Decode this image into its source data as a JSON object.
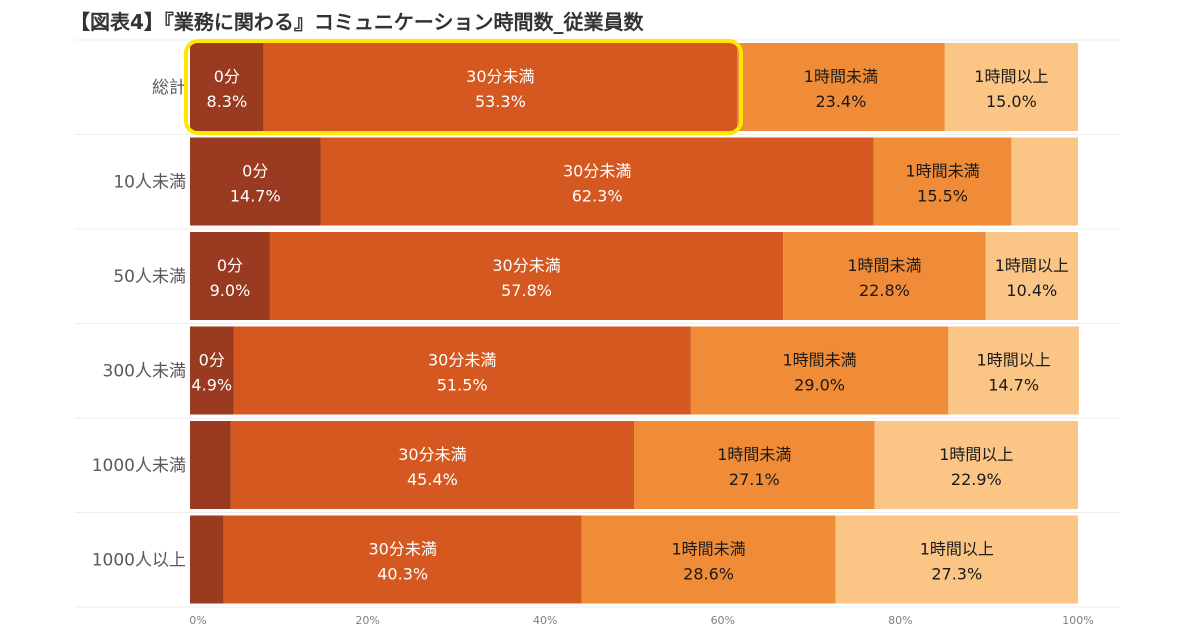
{
  "title": "【図表4】『業務に関わる』コミュニケーション時間数_従業員数",
  "chart_data": {
    "type": "bar",
    "orientation": "horizontal",
    "stacked": "100%",
    "categories": [
      "総計",
      "10人未満",
      "50人未満",
      "300人未満",
      "1000人未満",
      "1000人以上"
    ],
    "series": [
      {
        "name": "0分",
        "color": "#9A3A20",
        "values": [
          8.3,
          14.7,
          9.0,
          4.9,
          4.6,
          3.8
        ]
      },
      {
        "name": "30分未満",
        "color": "#D4581F",
        "values": [
          53.3,
          62.3,
          57.8,
          51.5,
          45.4,
          40.3
        ]
      },
      {
        "name": "1時間未満",
        "color": "#F08C38",
        "values": [
          23.4,
          15.5,
          22.8,
          29.0,
          27.1,
          28.6
        ]
      },
      {
        "name": "1時間以上",
        "color": "#FBC586",
        "values": [
          15.0,
          7.5,
          10.4,
          14.7,
          22.9,
          27.3
        ]
      }
    ],
    "value_labels": [
      [
        {
          "name": "0分",
          "value": "8.3%"
        },
        {
          "name": "30分未満",
          "value": "53.3%"
        },
        {
          "name": "1時間未満",
          "value": "23.4%"
        },
        {
          "name": "1時間以上",
          "value": "15.0%"
        }
      ],
      [
        {
          "name": "0分",
          "value": "14.7%"
        },
        {
          "name": "30分未満",
          "value": "62.3%"
        },
        {
          "name": "1時間未満",
          "value": "15.5%"
        },
        null
      ],
      [
        {
          "name": "0分",
          "value": "9.0%"
        },
        {
          "name": "30分未満",
          "value": "57.8%"
        },
        {
          "name": "1時間未満",
          "value": "22.8%"
        },
        {
          "name": "1時間以上",
          "value": "10.4%"
        }
      ],
      [
        {
          "name": "0分",
          "value": "4.9%"
        },
        {
          "name": "30分未満",
          "value": "51.5%"
        },
        {
          "name": "1時間未満",
          "value": "29.0%"
        },
        {
          "name": "1時間以上",
          "value": "14.7%"
        }
      ],
      [
        null,
        {
          "name": "30分未満",
          "value": "45.4%"
        },
        {
          "name": "1時間未満",
          "value": "27.1%"
        },
        {
          "name": "1時間以上",
          "value": "22.9%"
        }
      ],
      [
        null,
        {
          "name": "30分未満",
          "value": "40.3%"
        },
        {
          "name": "1時間未満",
          "value": "28.6%"
        },
        {
          "name": "1時間以上",
          "value": "27.3%"
        }
      ]
    ],
    "x_ticks": [
      "0%",
      "20%",
      "40%",
      "60%",
      "80%",
      "100%"
    ],
    "xlim": [
      0,
      100
    ],
    "highlight": {
      "category": "総計",
      "series": [
        "0分",
        "30分未満"
      ],
      "color": "#FFE800"
    },
    "text_colors": {
      "dark_segments": "#ffffff",
      "light_segments": "#1a1a1a"
    }
  }
}
